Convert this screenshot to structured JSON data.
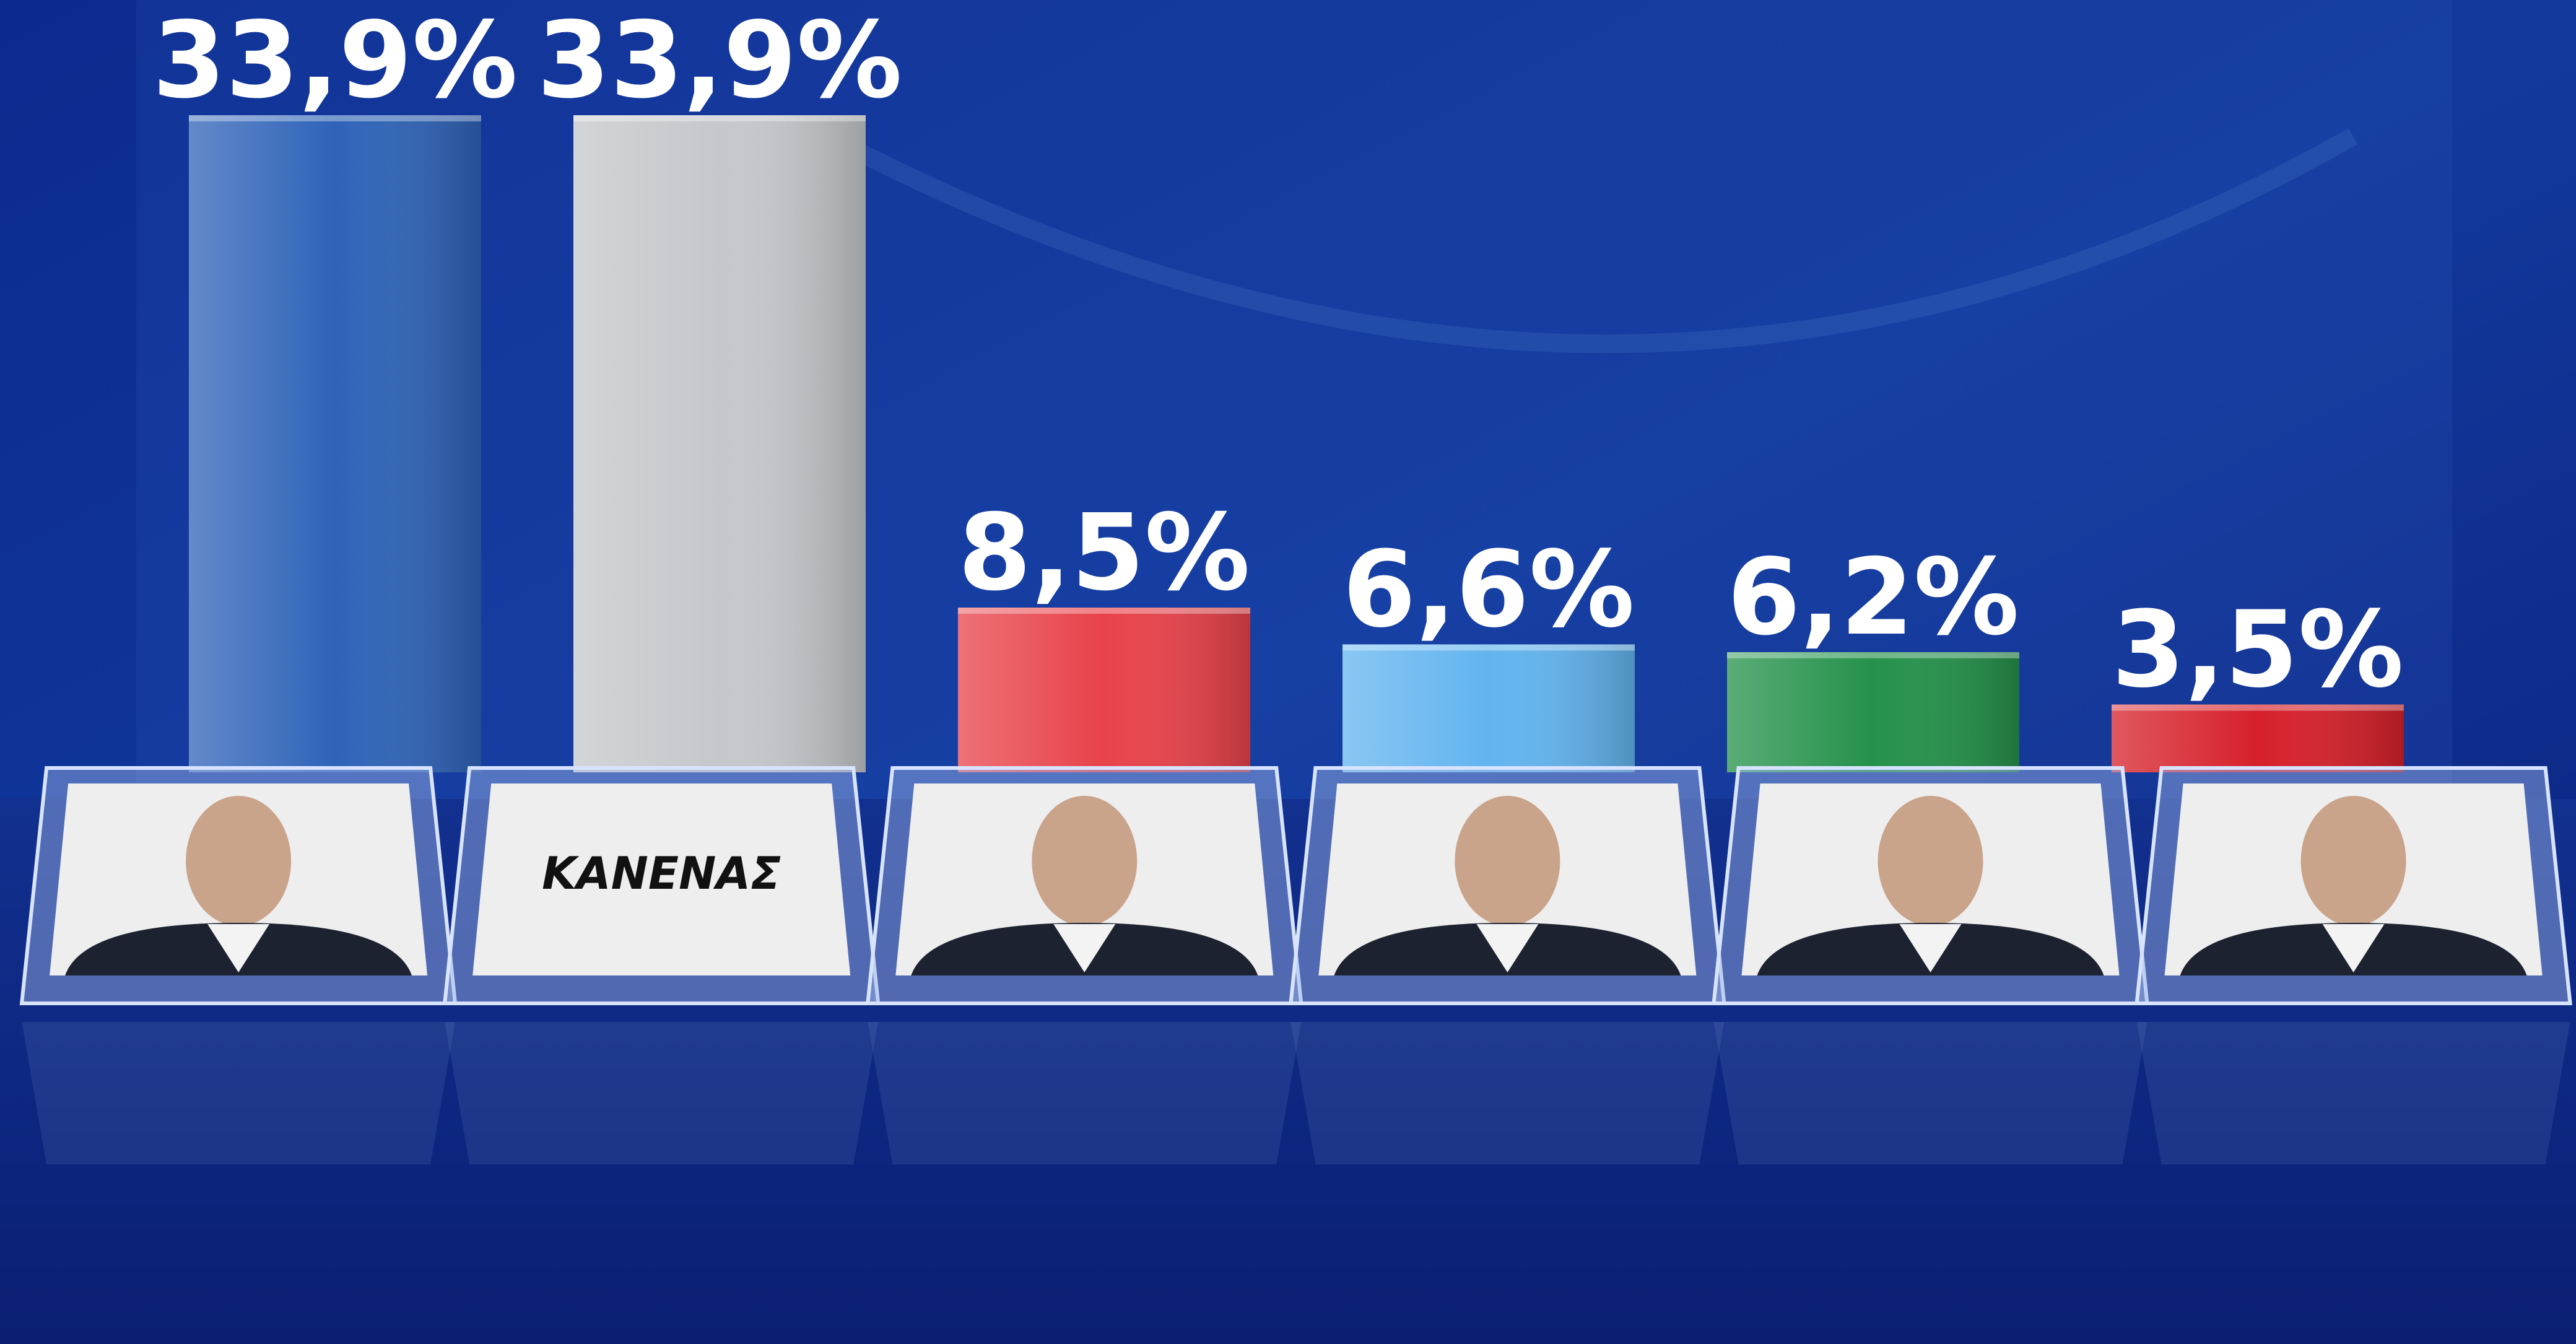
{
  "chart_data": {
    "type": "bar",
    "categories": [
      null,
      "ΚΑΝΕΝΑΣ",
      null,
      null,
      null,
      null
    ],
    "values": [
      33.9,
      33.9,
      8.5,
      6.6,
      6.2,
      3.5
    ],
    "value_labels": [
      "33,9%",
      "33,9%",
      "8,5%",
      "6,6%",
      "6,2%",
      "3,5%"
    ],
    "colors": [
      "#2f63b8",
      "#c4c7cb",
      "#e8424a",
      "#62b4ef",
      "#24914a",
      "#d6202a"
    ]
  }
}
